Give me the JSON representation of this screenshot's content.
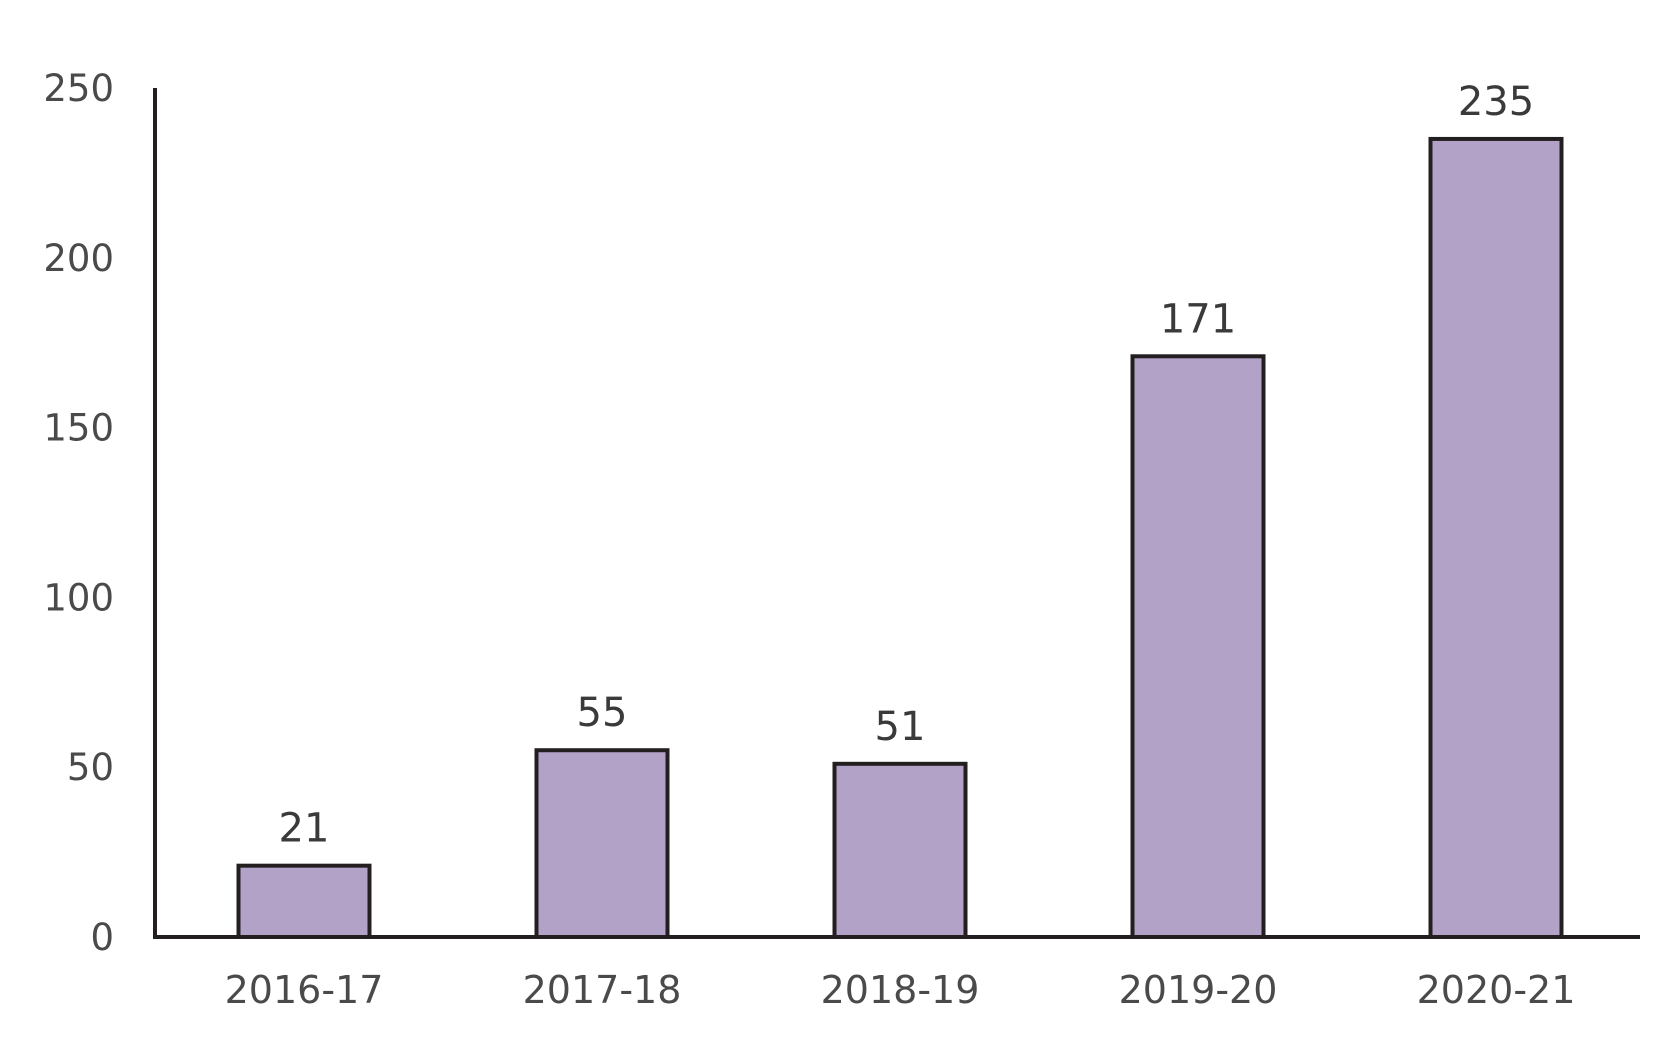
{
  "colors": {
    "bar_fill": "#b2a2c7",
    "bar_stroke": "#231f20",
    "axis": "#231f20"
  },
  "chart_data": {
    "type": "bar",
    "title": "",
    "xlabel": "",
    "ylabel": "",
    "categories": [
      "2016-17",
      "2017-18",
      "2018-19",
      "2019-20",
      "2020-21"
    ],
    "values": [
      21,
      55,
      51,
      171,
      235
    ],
    "data_labels": [
      "21",
      "55",
      "51",
      "171",
      "235"
    ],
    "ylim": [
      0,
      250
    ],
    "yticks": [
      0,
      50,
      100,
      150,
      200,
      250
    ],
    "ytick_labels": [
      "0",
      "50",
      "100",
      "150",
      "200",
      "250"
    ],
    "grid": false,
    "legend": "none"
  }
}
